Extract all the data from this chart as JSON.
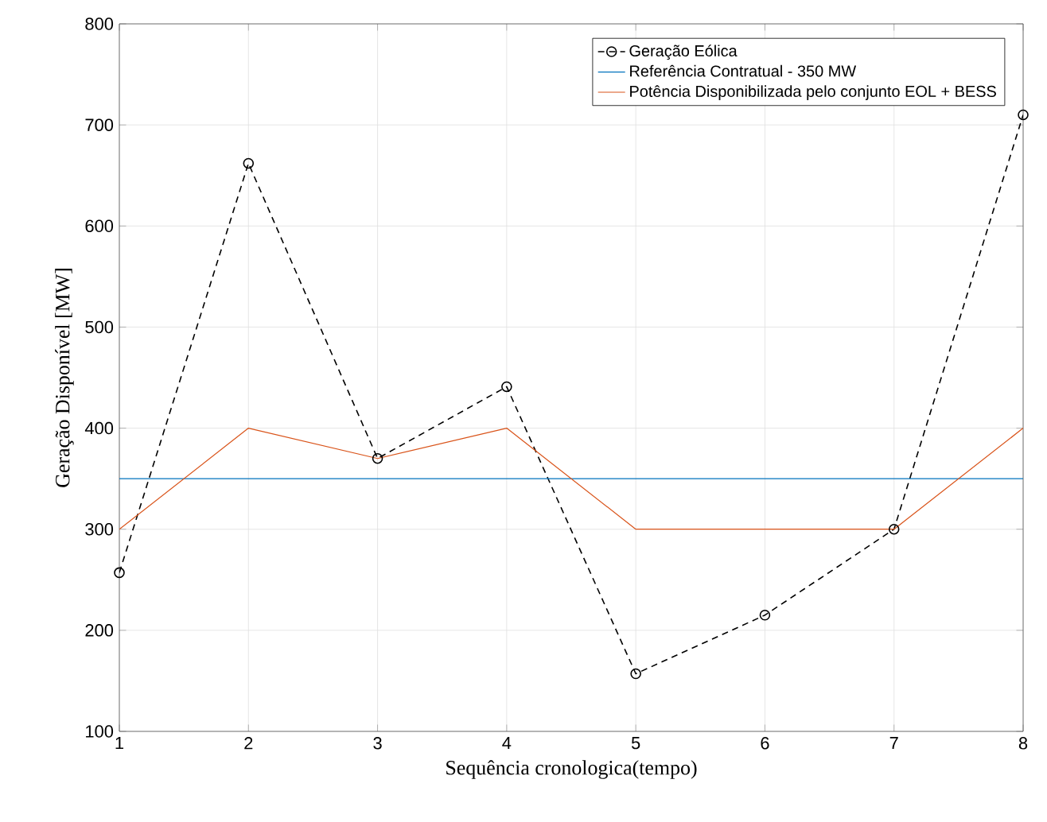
{
  "chart_data": {
    "type": "line",
    "xlabel": "Sequência cronologica(tempo)",
    "ylabel": "Geração Disponível [MW]",
    "x": [
      1,
      2,
      3,
      4,
      5,
      6,
      7,
      8
    ],
    "series": [
      {
        "name": "Geração Eólica",
        "color": "#000000",
        "marker": "circle",
        "line_style": "dashed",
        "values": [
          257,
          662,
          370,
          441,
          157,
          215,
          300,
          710
        ]
      },
      {
        "name": "Referência Contratual - 350 MW",
        "color": "#0072bd",
        "marker": "none",
        "line_style": "solid",
        "values": [
          350,
          350,
          350,
          350,
          350,
          350,
          350,
          350
        ]
      },
      {
        "name": "Potência Disponibilizada pelo conjunto EOL + BESS",
        "color": "#d95319",
        "marker": "none",
        "line_style": "solid",
        "values": [
          300,
          400,
          370,
          400,
          300,
          300,
          300,
          400
        ]
      }
    ],
    "xlim": [
      1,
      8
    ],
    "ylim": [
      100,
      800
    ],
    "xticks": [
      1,
      2,
      3,
      4,
      5,
      6,
      7,
      8
    ],
    "yticks": [
      100,
      200,
      300,
      400,
      500,
      600,
      700,
      800
    ],
    "grid": true,
    "legend": "top right"
  }
}
